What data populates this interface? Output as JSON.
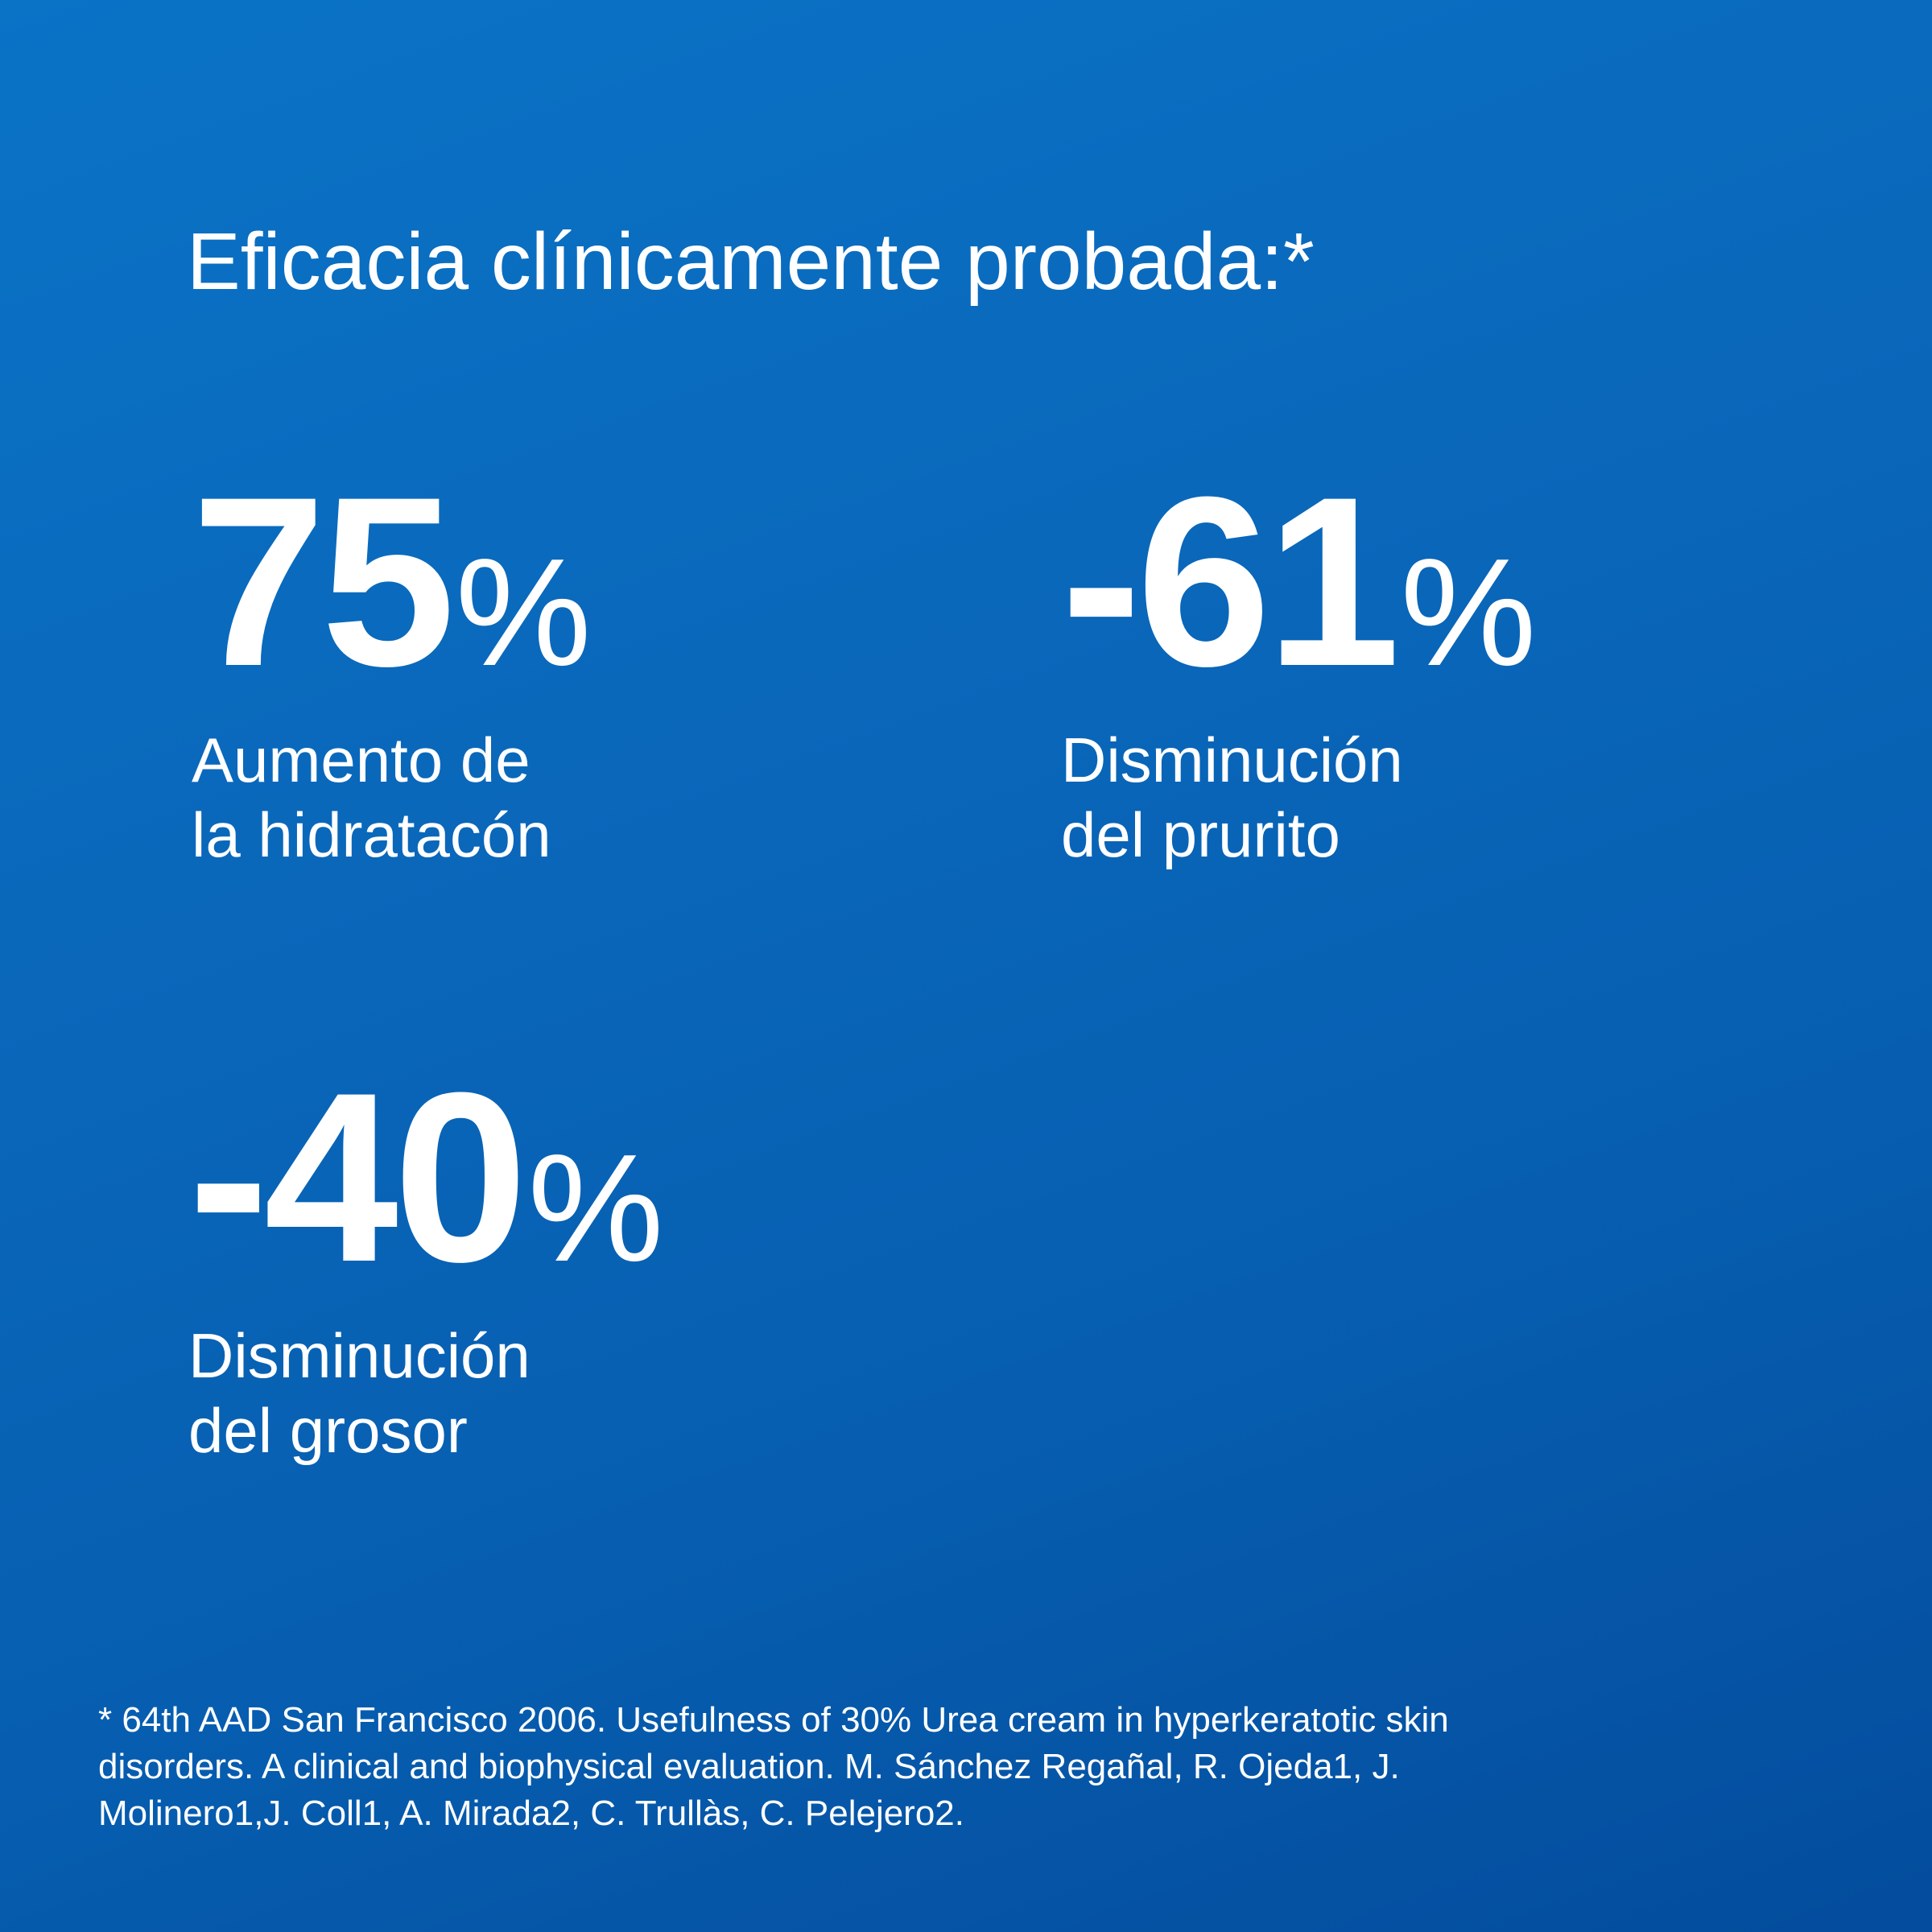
{
  "background": {
    "gradient_start": "#0a73c6",
    "gradient_end": "#044c9d",
    "text_color": "#ffffff"
  },
  "headline": "Eficacia clínicamente probada:*",
  "stats": [
    {
      "number": "75",
      "percent": "%",
      "caption_line_1": "Aumento de",
      "caption_line_2": "la hidratacón"
    },
    {
      "number": "-61",
      "percent": "%",
      "caption_line_1": "Disminución",
      "caption_line_2": "del prurito"
    },
    {
      "number": "-40",
      "percent": "%",
      "caption_line_1": "Disminución",
      "caption_line_2": "del grosor"
    }
  ],
  "footnote": {
    "line_1": "* 64th AAD San Francisco 2006. Usefulness of 30% Urea cream in hyperkeratotic skin",
    "line_2": "disorders. A clinical and biophysical evaluation. M. Sánchez Regañal, R. Ojeda1, J.",
    "line_3": "Molinero1,J. Coll1, A. Mirada2, C. Trullàs, C. Pelejero2."
  }
}
